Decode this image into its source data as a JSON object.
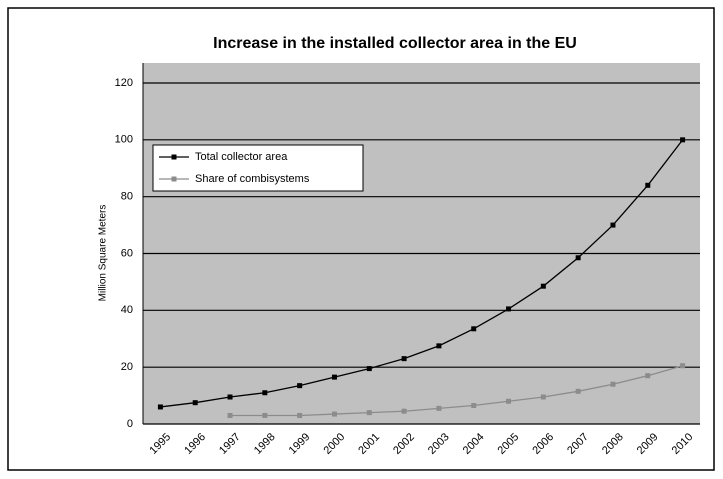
{
  "chart_data": {
    "type": "line",
    "title": "Increase in the installed collector area in the EU",
    "ylabel": "Million Square Meters",
    "categories": [
      "1995",
      "1996",
      "1997",
      "1998",
      "1999",
      "2000",
      "2001",
      "2002",
      "2003",
      "2004",
      "2005",
      "2006",
      "2007",
      "2008",
      "2009",
      "2010"
    ],
    "series": [
      {
        "name": "Total collector area",
        "color": "#000000",
        "values": [
          6,
          7.5,
          9.5,
          11,
          13.5,
          16.5,
          19.5,
          23,
          27.5,
          33.5,
          40.5,
          48.5,
          58.5,
          70,
          84,
          100
        ]
      },
      {
        "name": "Share of combisystems",
        "color": "#8c8c8c",
        "values": [
          null,
          null,
          3,
          3,
          3,
          3.5,
          4,
          4.5,
          5.5,
          6.5,
          8,
          9.5,
          11.5,
          14,
          17,
          20.5
        ]
      }
    ],
    "ylim": [
      0,
      120
    ],
    "yticks": [
      0,
      20,
      40,
      60,
      80,
      100,
      120
    ],
    "grid": true,
    "legend": "upper left"
  }
}
